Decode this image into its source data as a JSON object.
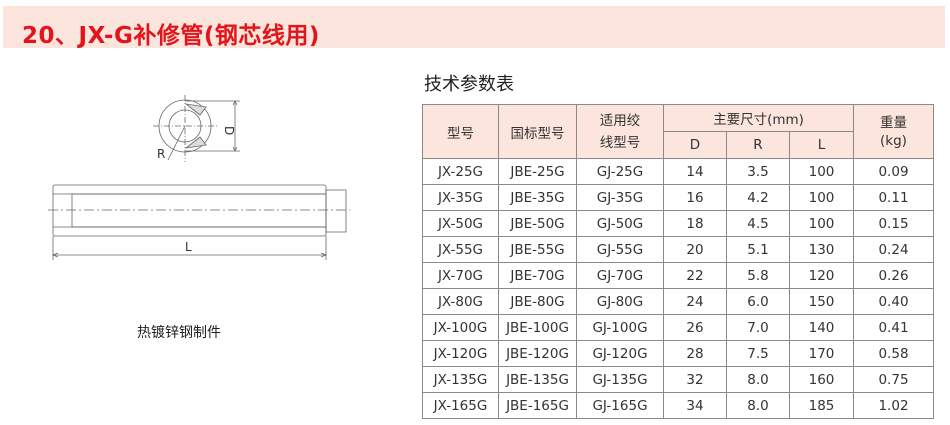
{
  "title": "20、JX-G补修管(钢芯线用)",
  "table_title": "技术参数表",
  "drawing": {
    "label_d": "D",
    "label_r": "R",
    "label_l": "L",
    "caption": "热镀锌钢制件"
  },
  "colors": {
    "title": "#e3141b",
    "header_bg": "#fbe5dc"
  },
  "table": {
    "headers": {
      "model": "型号",
      "national_model": "国标型号",
      "wire_model": "适用绞线型号",
      "dimensions": "主要尺寸(mm)",
      "d": "D",
      "r": "R",
      "l": "L",
      "weight": "重量(kg)"
    },
    "rows": [
      [
        "JX-25G",
        "JBE-25G",
        "GJ-25G",
        "14",
        "3.5",
        "100",
        "0.09"
      ],
      [
        "JX-35G",
        "JBE-35G",
        "GJ-35G",
        "16",
        "4.2",
        "100",
        "0.11"
      ],
      [
        "JX-50G",
        "JBE-50G",
        "GJ-50G",
        "18",
        "4.5",
        "100",
        "0.15"
      ],
      [
        "JX-55G",
        "JBE-55G",
        "GJ-55G",
        "20",
        "5.1",
        "130",
        "0.24"
      ],
      [
        "JX-70G",
        "JBE-70G",
        "GJ-70G",
        "22",
        "5.8",
        "120",
        "0.26"
      ],
      [
        "JX-80G",
        "JBE-80G",
        "GJ-80G",
        "24",
        "6.0",
        "150",
        "0.40"
      ],
      [
        "JX-100G",
        "JBE-100G",
        "GJ-100G",
        "26",
        "7.0",
        "140",
        "0.41"
      ],
      [
        "JX-120G",
        "JBE-120G",
        "GJ-120G",
        "28",
        "7.5",
        "170",
        "0.58"
      ],
      [
        "JX-135G",
        "JBE-135G",
        "GJ-135G",
        "32",
        "8.0",
        "160",
        "0.75"
      ],
      [
        "JX-165G",
        "JBE-165G",
        "GJ-165G",
        "34",
        "8.0",
        "185",
        "1.02"
      ]
    ]
  }
}
